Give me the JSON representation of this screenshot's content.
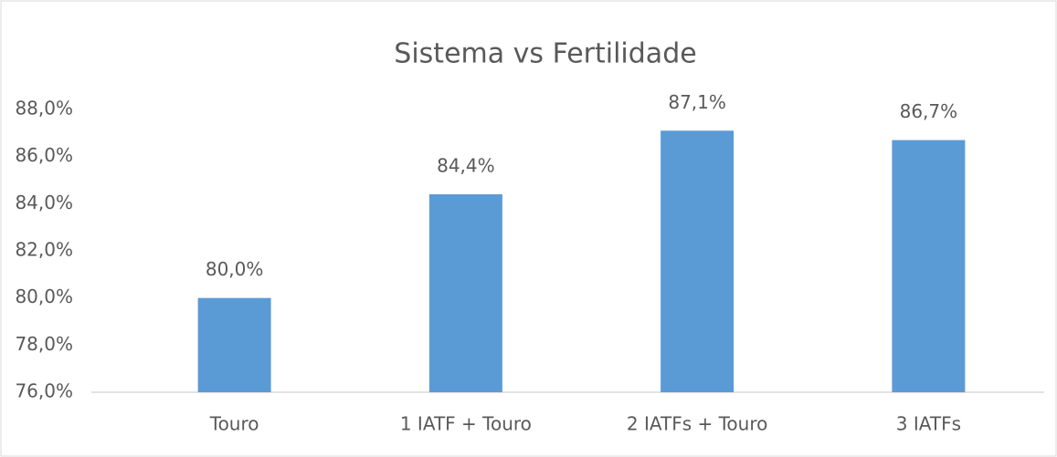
{
  "chart_data": {
    "type": "bar",
    "title": "Sistema vs Fertilidade",
    "categories": [
      "Touro",
      "1 IATF + Touro",
      "2 IATFs + Touro",
      "3 IATFs"
    ],
    "values": [
      80.0,
      84.4,
      87.1,
      86.7
    ],
    "value_labels": [
      "80,0%",
      "84,4%",
      "87,1%",
      "86,7%"
    ],
    "color": "#5b9bd5",
    "ylim": [
      76,
      88
    ],
    "yticks": [
      {
        "value": 76,
        "label": "76,0%"
      },
      {
        "value": 78,
        "label": "78,0%"
      },
      {
        "value": 80,
        "label": "80,0%"
      },
      {
        "value": 82,
        "label": "82,0%"
      },
      {
        "value": 84,
        "label": "84,0%"
      },
      {
        "value": 86,
        "label": "86,0%"
      },
      {
        "value": 88,
        "label": "88,0%"
      }
    ],
    "grid": false
  }
}
